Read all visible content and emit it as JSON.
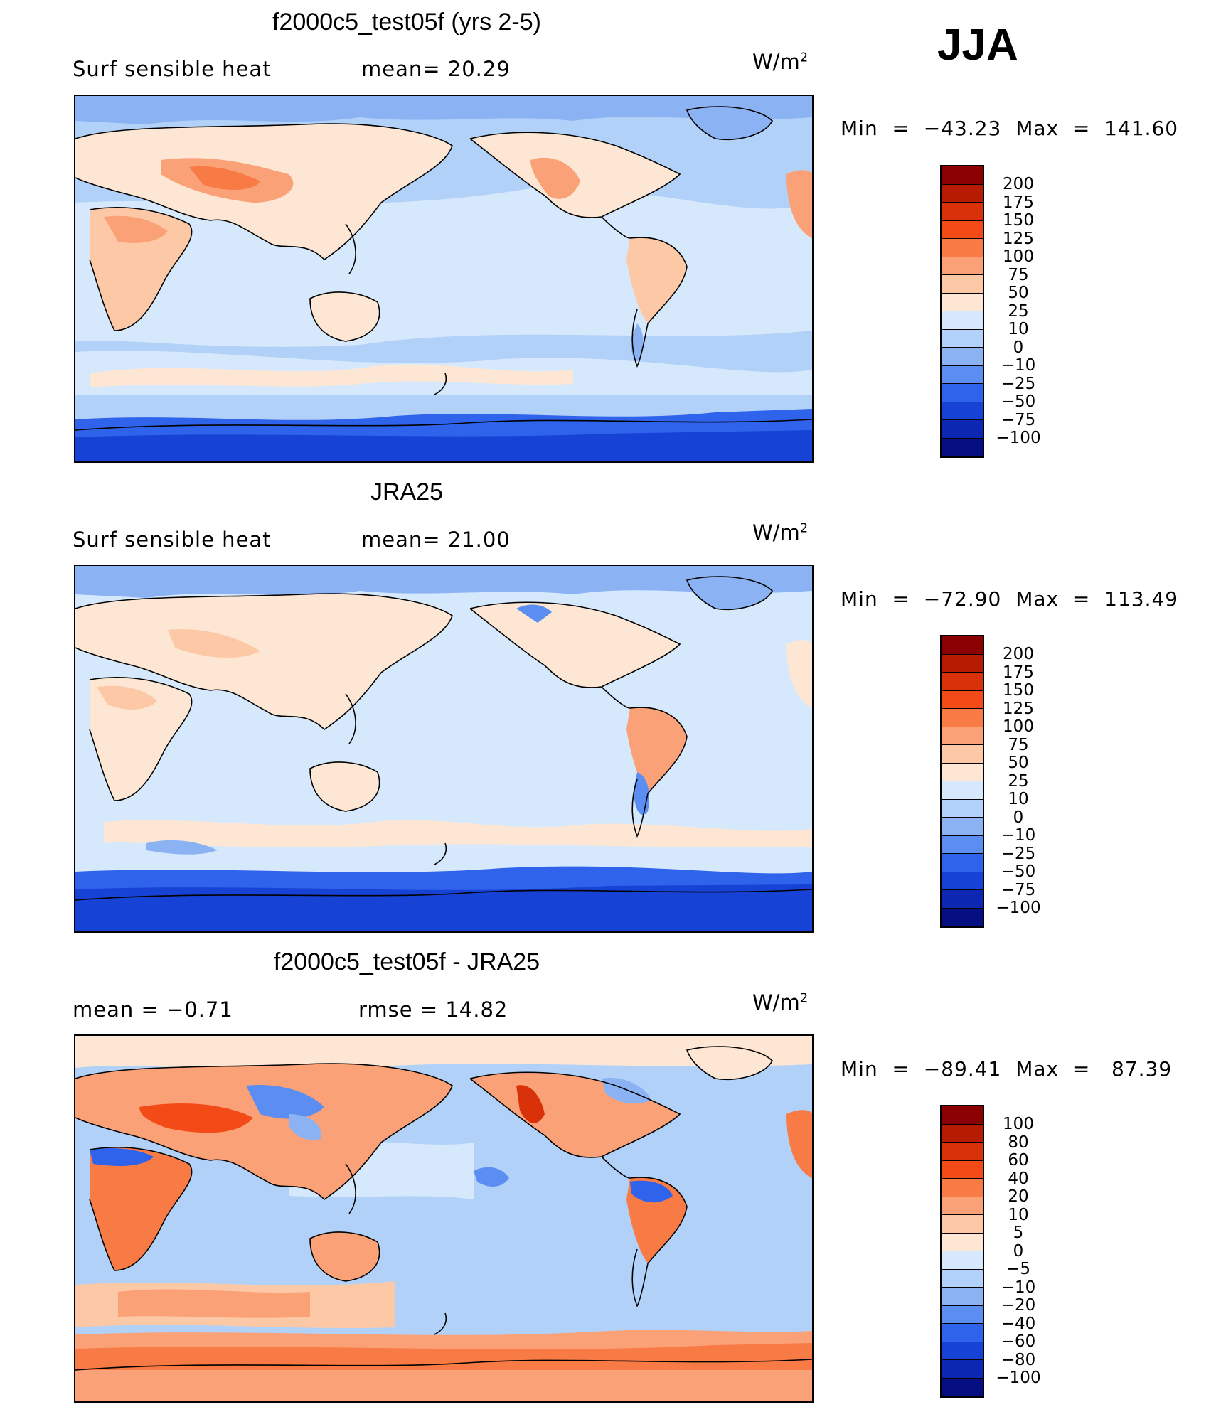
{
  "season": "JJA",
  "panels": [
    {
      "title": "f2000c5_test05f (yrs 2-5)",
      "left_label": "Surf  sensible  heat",
      "mid_label": "mean=   20.29",
      "unit": "W/m",
      "unit_exp": "2",
      "min_label": "Min",
      "min_value": "−43.23",
      "max_label": "Max",
      "max_value": "141.60",
      "levels": [
        "200",
        "175",
        "150",
        "125",
        "100",
        "75",
        "50",
        "25",
        "10",
        "0",
        "−10",
        "−25",
        "−50",
        "−75",
        "−100"
      ],
      "colors": [
        "#8b0000",
        "#b71c02",
        "#d9320a",
        "#f24b17",
        "#f87a45",
        "#fba178",
        "#fdc8a6",
        "#fde6d3",
        "#d6e8fb",
        "#b2d1f8",
        "#8bb3f4",
        "#5b8ef0",
        "#2f63ec",
        "#1742d6",
        "#0c28b3",
        "#050f82"
      ]
    },
    {
      "title": "JRA25",
      "left_label": "Surf  sensible  heat",
      "mid_label": "mean=   21.00",
      "unit": "W/m",
      "unit_exp": "2",
      "min_label": "Min",
      "min_value": "−72.90",
      "max_label": "Max",
      "max_value": "113.49",
      "levels": [
        "200",
        "175",
        "150",
        "125",
        "100",
        "75",
        "50",
        "25",
        "10",
        "0",
        "−10",
        "−25",
        "−50",
        "−75",
        "−100"
      ],
      "colors": [
        "#8b0000",
        "#b71c02",
        "#d9320a",
        "#f24b17",
        "#f87a45",
        "#fba178",
        "#fdc8a6",
        "#fde6d3",
        "#d6e8fb",
        "#b2d1f8",
        "#8bb3f4",
        "#5b8ef0",
        "#2f63ec",
        "#1742d6",
        "#0c28b3",
        "#050f82"
      ]
    },
    {
      "title": "f2000c5_test05f - JRA25",
      "left_label": "mean  =    −0.71",
      "mid_label": "rmse  =    14.82",
      "unit": "W/m",
      "unit_exp": "2",
      "min_label": "Min",
      "min_value": "−89.41",
      "max_label": "Max",
      "max_value": "87.39",
      "levels": [
        "100",
        "80",
        "60",
        "40",
        "20",
        "10",
        "5",
        "0",
        "−5",
        "−10",
        "−20",
        "−40",
        "−60",
        "−80",
        "−100"
      ],
      "colors": [
        "#8b0000",
        "#b71c02",
        "#d9320a",
        "#f24b17",
        "#f87a45",
        "#fba178",
        "#fdc8a6",
        "#fde6d3",
        "#d6e8fb",
        "#b2d1f8",
        "#8bb3f4",
        "#5b8ef0",
        "#2f63ec",
        "#1742d6",
        "#0c28b3",
        "#050f82"
      ]
    }
  ]
}
